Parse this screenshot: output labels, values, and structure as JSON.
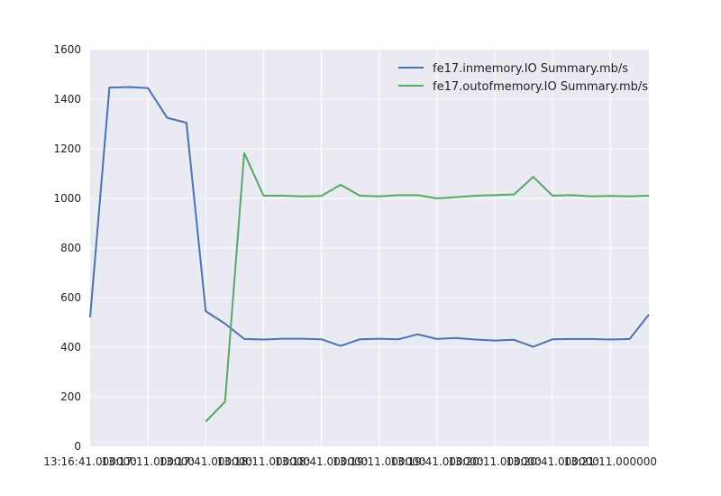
{
  "chart_data": {
    "type": "line",
    "title": "",
    "xlabel": "",
    "ylabel": "",
    "ylim": [
      0,
      1600
    ],
    "yticks": [
      0,
      200,
      400,
      600,
      800,
      1000,
      1200,
      1400,
      1600
    ],
    "xlim": [
      0,
      29
    ],
    "xtick_positions": [
      0,
      3,
      6,
      9,
      12,
      15,
      18,
      21,
      24,
      27
    ],
    "xtick_labels": [
      "13:16:41.000000",
      "13:17:11.000000",
      "13:17:41.000000",
      "13:18:11.000000",
      "13:18:41.000000",
      "13:19:11.000000",
      "13:19:41.000000",
      "13:20:11.000000",
      "13:20:41.000000",
      "13:21:11.000000"
    ],
    "grid": true,
    "background": "#EAEAF2",
    "legend": "top-right",
    "series": [
      {
        "name": "fe17.inmemory.IO Summary.mb/s",
        "color": "#4C72B0",
        "x": [
          0,
          1,
          2,
          3,
          4,
          5,
          6,
          7,
          8,
          9,
          10,
          11,
          12,
          13,
          14,
          15,
          16,
          17,
          18,
          19,
          20,
          21,
          22,
          23,
          24,
          25,
          26,
          27,
          28,
          29
        ],
        "values": [
          520,
          1447,
          1449,
          1445,
          1325,
          1305,
          545,
          495,
          433,
          431,
          434,
          434,
          432,
          405,
          432,
          434,
          432,
          452,
          433,
          437,
          431,
          427,
          430,
          402,
          432,
          433,
          433,
          431,
          433,
          532
        ]
      },
      {
        "name": "fe17.outofmemory.IO Summary.mb/s",
        "color": "#55A868",
        "x": [
          6,
          7,
          8,
          9,
          10,
          11,
          12,
          13,
          14,
          15,
          16,
          17,
          18,
          19,
          20,
          21,
          22,
          23,
          24,
          25,
          26,
          27,
          28,
          29
        ],
        "values": [
          100,
          180,
          1183,
          1011,
          1011,
          1008,
          1010,
          1055,
          1011,
          1008,
          1013,
          1013,
          1000,
          1005,
          1011,
          1013,
          1016,
          1087,
          1011,
          1013,
          1008,
          1010,
          1008,
          1011
        ]
      }
    ]
  }
}
